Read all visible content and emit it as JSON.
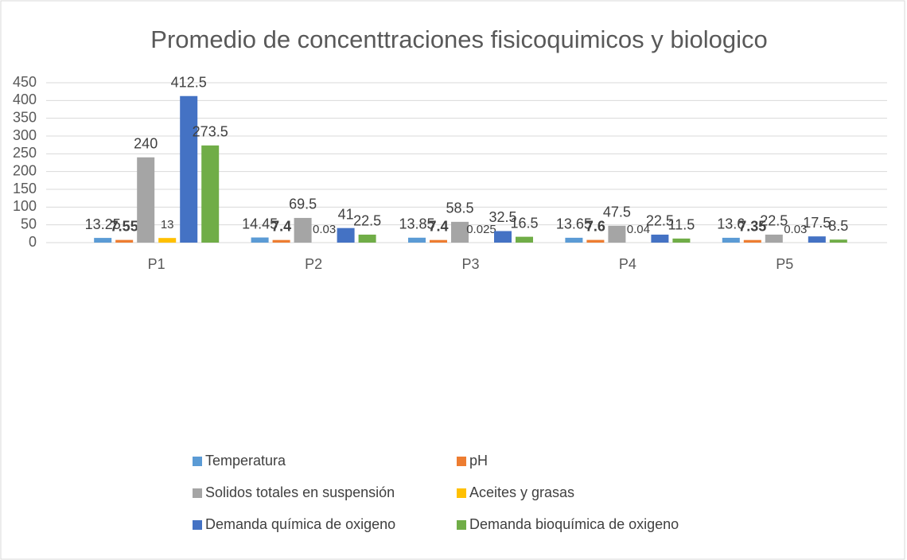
{
  "chart_data": {
    "type": "bar",
    "title": "Promedio de concenttraciones fisicoquimicos y biologico",
    "categories": [
      "P1",
      "P2",
      "P3",
      "P4",
      "P5"
    ],
    "series": [
      {
        "name": "Temperatura",
        "color": "#5b9bd5",
        "values": [
          13.25,
          14.45,
          13.85,
          13.65,
          13.6
        ]
      },
      {
        "name": "pH",
        "color": "#ed7d31",
        "values": [
          7.55,
          7.4,
          7.4,
          7.6,
          7.35
        ]
      },
      {
        "name": "Solidos totales en suspensión",
        "color": "#a5a5a5",
        "values": [
          240,
          69.5,
          58.5,
          47.5,
          22.5
        ]
      },
      {
        "name": "Aceites y grasas",
        "color": "#ffc000",
        "values": [
          13,
          0.03,
          0.025,
          0.04,
          0.03
        ]
      },
      {
        "name": "Demanda química de oxigeno",
        "color": "#4472c4",
        "values": [
          412.5,
          41,
          32.5,
          22.5,
          17.5
        ]
      },
      {
        "name": "Demanda bioquímica de oxigeno",
        "color": "#70ad47",
        "values": [
          273.5,
          22.5,
          16.5,
          11.5,
          8.5
        ]
      }
    ],
    "ylim": [
      0,
      450
    ],
    "yticks": [
      0,
      50,
      100,
      150,
      200,
      250,
      300,
      350,
      400,
      450
    ],
    "grid": true,
    "legend": "bottom"
  }
}
